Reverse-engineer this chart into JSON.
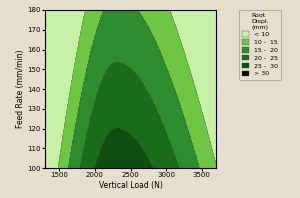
{
  "xlabel": "Vertical Load (N)",
  "ylabel": "Feed Rate (mm/min)",
  "xlim": [
    1300,
    3700
  ],
  "ylim": [
    100,
    180
  ],
  "xticks": [
    1500,
    2000,
    2500,
    3000,
    3500
  ],
  "yticks": [
    100,
    110,
    120,
    130,
    140,
    150,
    160,
    170,
    180
  ],
  "bg_color": "#e8dece",
  "legend_title": "Root\nDispl.\n(mm)",
  "legend_labels": [
    "< 10",
    "10 -  15",
    "15 -  20",
    "20 -  25",
    "25 -  30",
    "> 30"
  ],
  "contour_colors": [
    "#c8f0a8",
    "#6ec644",
    "#2e8b2e",
    "#1a6b1a",
    "#0d4d0d",
    "#020a02"
  ],
  "levels": [
    0,
    10,
    15,
    20,
    25,
    30,
    50
  ]
}
